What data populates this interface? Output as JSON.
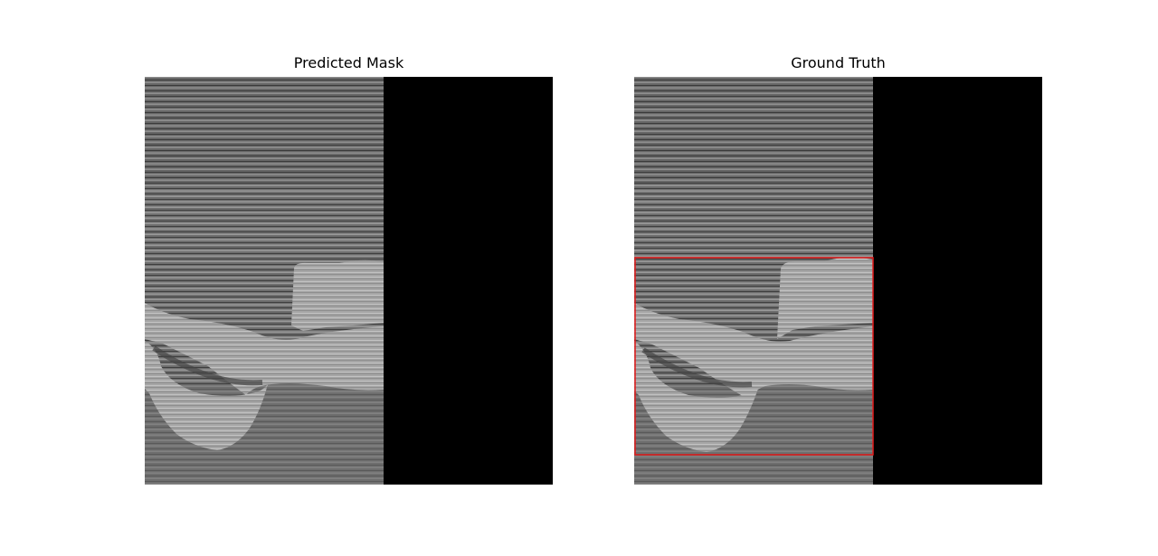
{
  "figure": {
    "panels": [
      {
        "title": "Predicted Mask"
      },
      {
        "title": "Ground Truth"
      }
    ]
  },
  "colors": {
    "seismic_base": "#6f6f6f",
    "mask_fill": "#a8a8a8",
    "background": "#000000",
    "bbox_outline": "#e31a1a"
  }
}
